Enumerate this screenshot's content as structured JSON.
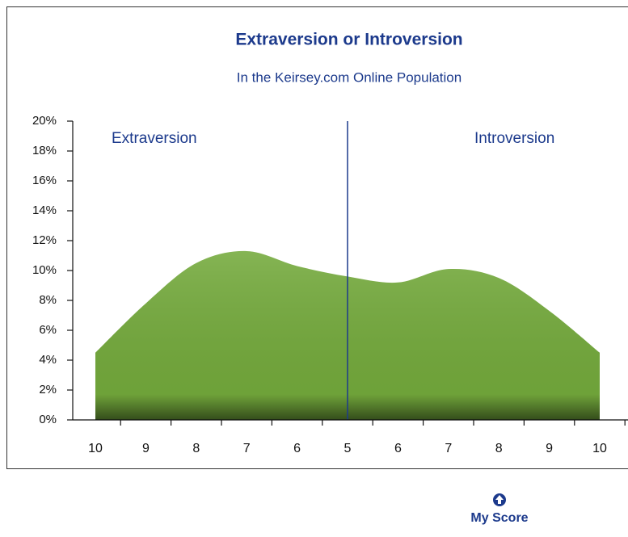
{
  "chart_data": {
    "type": "area",
    "title": "Extraversion or Introversion",
    "subtitle": "In the Keirsey.com Online Population",
    "annotations": [
      "Extraversion",
      "Introversion"
    ],
    "marker_label": "My Score",
    "categories": [
      "10",
      "9",
      "8",
      "7",
      "6",
      "5",
      "6",
      "7",
      "8",
      "9",
      "10"
    ],
    "values": [
      4.5,
      7.8,
      10.5,
      11.3,
      10.3,
      9.6,
      9.2,
      10.1,
      9.5,
      7.3,
      4.5
    ],
    "color": "#74aa3c",
    "ylim": [
      0,
      20
    ],
    "yticks": [
      {
        "value": 0,
        "label": "0%"
      },
      {
        "value": 2,
        "label": "2%"
      },
      {
        "value": 4,
        "label": "4%"
      },
      {
        "value": 6,
        "label": "6%"
      },
      {
        "value": 8,
        "label": "8%"
      },
      {
        "value": 10,
        "label": "10%"
      },
      {
        "value": 12,
        "label": "12%"
      },
      {
        "value": 14,
        "label": "14%"
      },
      {
        "value": 16,
        "label": "16%"
      },
      {
        "value": 18,
        "label": "18%"
      },
      {
        "value": 20,
        "label": "20%"
      }
    ]
  }
}
